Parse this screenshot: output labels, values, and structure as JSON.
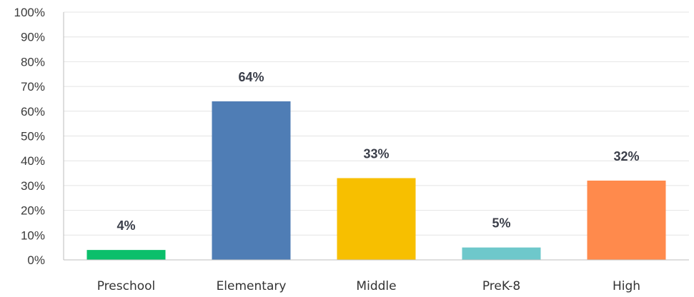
{
  "chart_data": {
    "type": "bar",
    "title": "",
    "xlabel": "",
    "ylabel": "",
    "categories": [
      "Preschool",
      "Elementary",
      "Middle",
      "PreK-8",
      "High"
    ],
    "values": [
      4,
      64,
      33,
      5,
      32
    ],
    "data_labels": [
      "4%",
      "64%",
      "33%",
      "5%",
      "32%"
    ],
    "colors": [
      "#0bbf6b",
      "#4f7db5",
      "#f7bf00",
      "#6ec8cb",
      "#ff8a4c"
    ],
    "ylim": [
      0,
      100
    ],
    "yticks": [
      "0%",
      "10%",
      "20%",
      "30%",
      "40%",
      "50%",
      "60%",
      "70%",
      "80%",
      "90%",
      "100%"
    ],
    "grid": true,
    "legend": "none"
  }
}
